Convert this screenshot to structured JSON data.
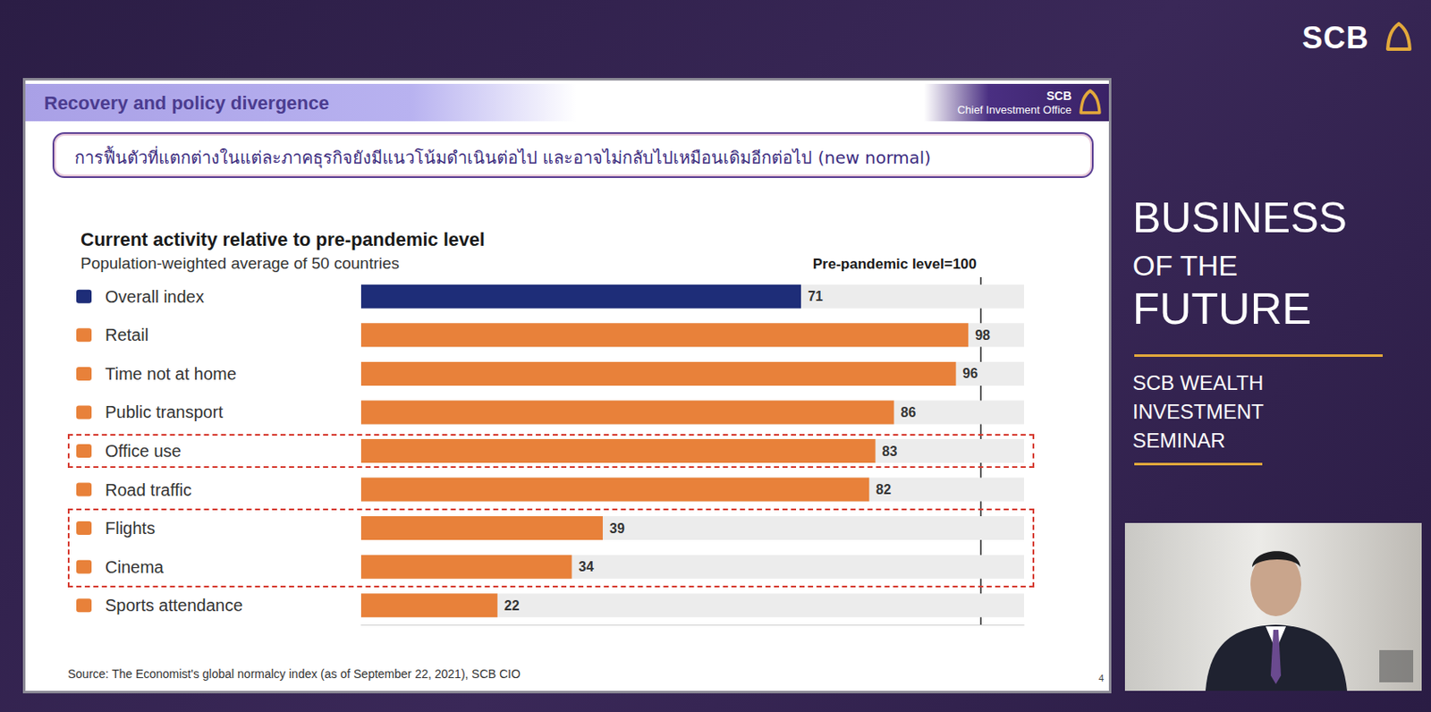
{
  "chart_data": {
    "type": "bar",
    "orientation": "horizontal",
    "title": "Current activity relative to pre-pandemic level",
    "subtitle": "Population-weighted average of 50 countries",
    "annotation": "Pre-pandemic level=100",
    "categories": [
      "Overall index",
      "Retail",
      "Time not at home",
      "Public transport",
      "Office use",
      "Road traffic",
      "Flights",
      "Cinema",
      "Sports attendance"
    ],
    "values": [
      71,
      98,
      96,
      86,
      83,
      82,
      39,
      34,
      22
    ],
    "colors": [
      "#1e2d78",
      "#e8813a",
      "#e8813a",
      "#e8813a",
      "#e8813a",
      "#e8813a",
      "#e8813a",
      "#e8813a",
      "#e8813a"
    ],
    "xlim": [
      0,
      107
    ],
    "xticks": [
      100
    ],
    "grid": true,
    "data_labels": true,
    "tick_labels": "y"
  },
  "page": {
    "logo": "SCB",
    "slide": {
      "header": "Recovery and policy divergence",
      "header_org": [
        "SCB",
        "Chief Investment Office"
      ],
      "subtitle": "การฟื้นตัวที่แตกต่างในแต่ละภาคธุรกิจยังมีแนวโน้มดำเนินต่อไป และอาจไม่กลับไปเหมือนเดิมอีกต่อไป (new normal)",
      "source": "Source: The Economist's global normalcy index (as of September 22, 2021), SCB CIO",
      "page_number": "4"
    },
    "sidebar": {
      "title": [
        "BUSINESS",
        "OF THE",
        "FUTURE"
      ],
      "event": [
        "SCB WEALTH",
        "INVESTMENT",
        "SEMINAR"
      ]
    }
  }
}
